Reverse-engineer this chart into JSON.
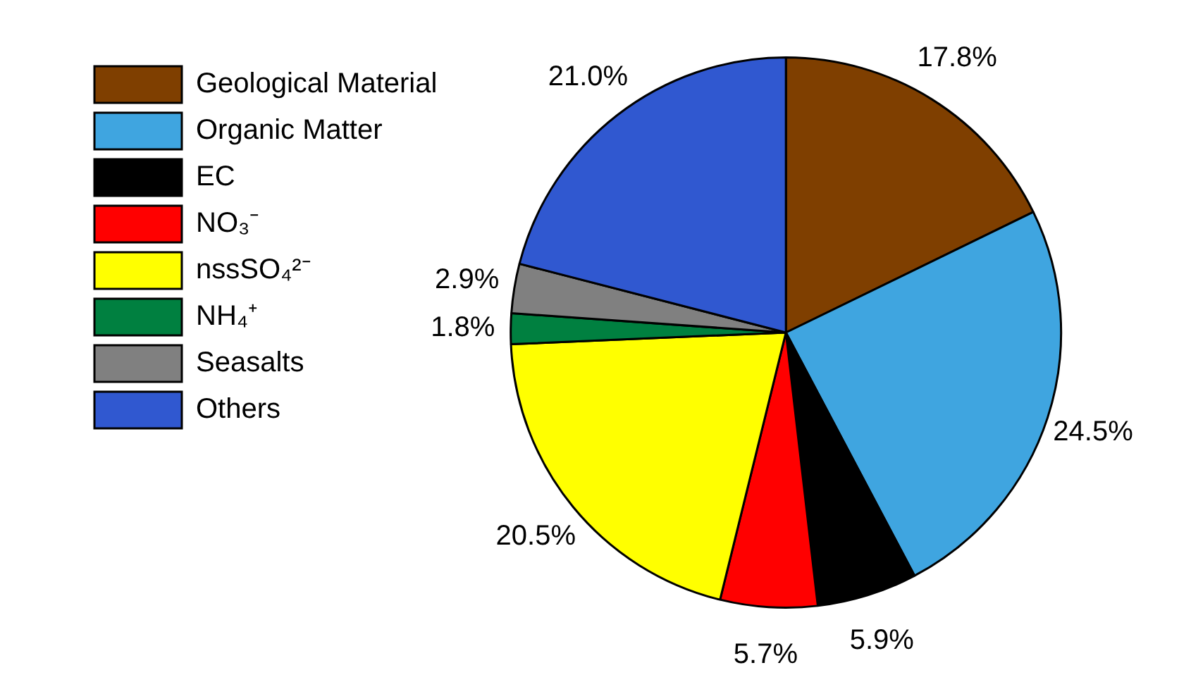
{
  "chart_data": {
    "type": "pie",
    "categories": [
      "Geological Material",
      "Organic Matter",
      "EC",
      "NO₃⁻",
      "nssSO₄²⁻",
      "NH₄⁺",
      "Seasalts",
      "Others"
    ],
    "values": [
      17.8,
      24.5,
      5.9,
      5.7,
      20.5,
      1.8,
      2.9,
      21.0
    ],
    "colors": [
      "#7f3f00",
      "#3fa5e0",
      "#000000",
      "#ff0000",
      "#ffff00",
      "#008040",
      "#808080",
      "#3058d0"
    ],
    "value_labels": [
      "17.8%",
      "24.5%",
      "5.9%",
      "5.7%",
      "20.5%",
      "1.8%",
      "2.9%",
      "21.0%"
    ],
    "legend": "top left"
  }
}
